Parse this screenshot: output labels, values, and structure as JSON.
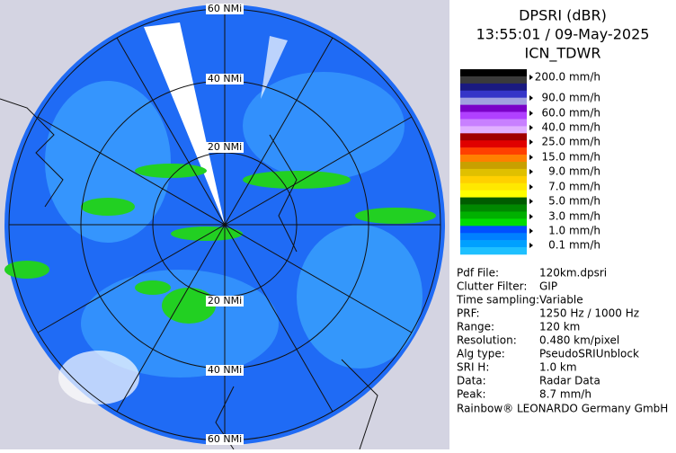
{
  "header": {
    "product": "DPSRI (dBR)",
    "time": "13:55:01 / 09-May-2025",
    "site": "ICN_TDWR"
  },
  "map": {
    "range_labels": [
      "60 NMi",
      "40 NMi",
      "20 NMi",
      "20 NMi",
      "40 NMi",
      "60 NMi"
    ]
  },
  "legend": {
    "labels": [
      "200.0 mm/h",
      "90.0 mm/h",
      "60.0 mm/h",
      "40.0 mm/h",
      "25.0 mm/h",
      "15.0 mm/h",
      "9.0 mm/h",
      "7.0 mm/h",
      "5.0 mm/h",
      "3.0 mm/h",
      "1.0 mm/h",
      "0.1 mm/h"
    ]
  },
  "info": {
    "rows": [
      [
        "Pdf File:",
        "120km.dpsri"
      ],
      [
        "Clutter Filter:",
        "GIP"
      ],
      [
        "Time sampling:",
        "Variable"
      ],
      [
        "PRF:",
        "1250 Hz / 1000 Hz"
      ],
      [
        "Range:",
        "120 km"
      ],
      [
        "Resolution:",
        "0.480 km/pixel"
      ],
      [
        "Alg type:",
        "PseudoSRIUnblock"
      ],
      [
        "SRI H:",
        "1.0 km"
      ],
      [
        "Data:",
        "Radar Data"
      ],
      [
        "Peak:",
        "8.7 mm/h"
      ]
    ]
  },
  "footer": "Rainbow® LEONARDO Germany GmbH"
}
